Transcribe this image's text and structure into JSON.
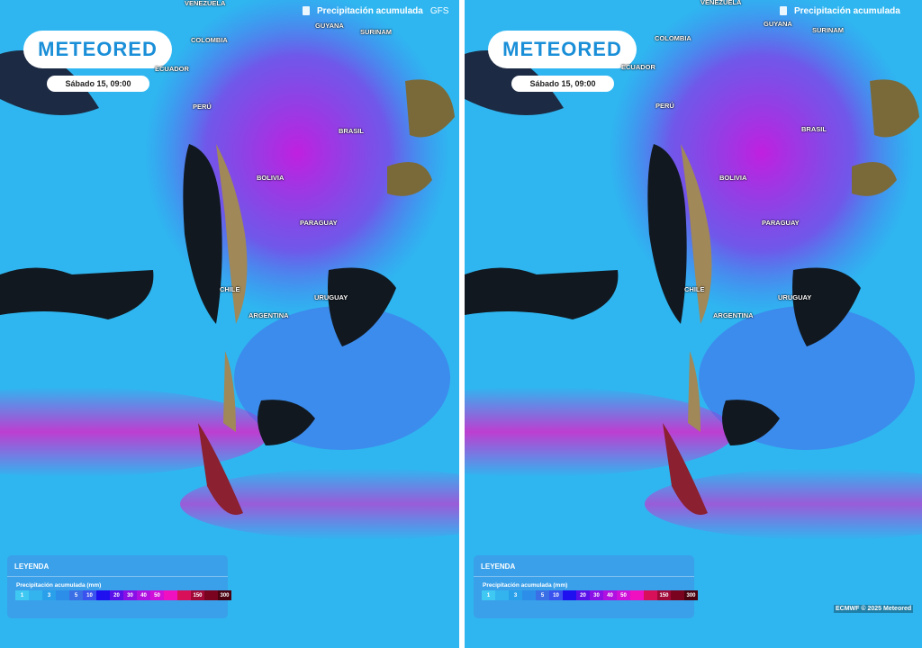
{
  "panels": [
    {
      "title": "Precipitación acumulada",
      "model": "GFS",
      "logo": "METEORED",
      "date": "Sábado 15, 09:00",
      "labels": [
        "VENEZUELA",
        "GUYANA",
        "SURINAM",
        "COLOMBIA",
        "ECUADOR",
        "PERÚ",
        "BRASIL",
        "BOLIVIA",
        "PARAGUAY",
        "CHILE",
        "URUGUAY",
        "ARGENTINA"
      ]
    },
    {
      "title": "Precipitación acumulada",
      "logo": "METEORED",
      "date": "Sábado 15, 09:00",
      "labels": [
        "VENEZUELA",
        "GUYANA",
        "SURINAM",
        "COLOMBIA",
        "ECUADOR",
        "PERÚ",
        "BRASIL",
        "BOLIVIA",
        "PARAGUAY",
        "CHILE",
        "URUGUAY",
        "ARGENTINA"
      ],
      "credit": "ECMWF © 2025 Meteored"
    }
  ],
  "legend": {
    "title": "LEYENDA",
    "subtitle": "Precipitación acumulada (mm)",
    "steps": [
      {
        "v": "1",
        "c": "#3ec8f2"
      },
      {
        "v": "",
        "c": "#33b4ee"
      },
      {
        "v": "3",
        "c": "#2aa0ea"
      },
      {
        "v": "",
        "c": "#2c8ee8"
      },
      {
        "v": "5",
        "c": "#3a6fe6"
      },
      {
        "v": "10",
        "c": "#3a52ee"
      },
      {
        "v": "",
        "c": "#1f10f0"
      },
      {
        "v": "20",
        "c": "#5a10e8"
      },
      {
        "v": "30",
        "c": "#8a10e6"
      },
      {
        "v": "40",
        "c": "#b010e0"
      },
      {
        "v": "50",
        "c": "#d010d8"
      },
      {
        "v": "",
        "c": "#f010c0"
      },
      {
        "v": "",
        "c": "#d8105a"
      },
      {
        "v": "150",
        "c": "#a00838"
      },
      {
        "v": "",
        "c": "#7a0420"
      },
      {
        "v": "300",
        "c": "#4a0210"
      }
    ]
  }
}
